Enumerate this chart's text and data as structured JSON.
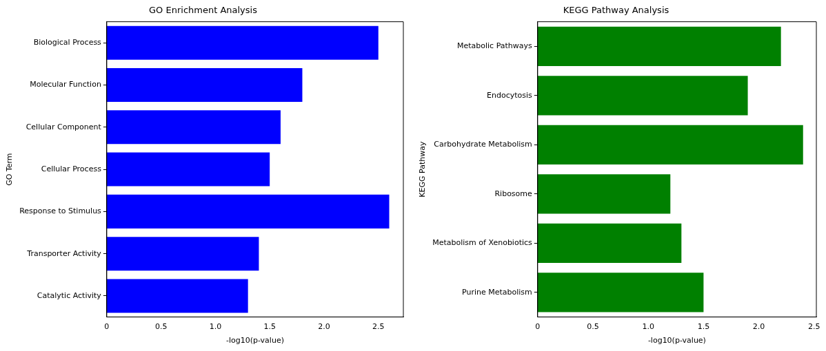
{
  "chart_data": [
    {
      "type": "bar",
      "orientation": "horizontal",
      "title": "GO Enrichment Analysis",
      "xlabel": "-log10(p-value)",
      "ylabel": "GO Term",
      "categories": [
        "Biological Process",
        "Molecular Function",
        "Cellular Component",
        "Cellular Process",
        "Response to Stimulus",
        "Transporter Activity",
        "Catalytic Activity"
      ],
      "values": [
        2.5,
        1.8,
        1.6,
        1.5,
        2.6,
        1.4,
        1.3
      ],
      "color": "#0000ff",
      "xlim": [
        0,
        2.73
      ],
      "xticks": [
        0,
        {
          "value": 0.5,
          "label": "0.5"
        },
        {
          "value": 1,
          "label": "1.0"
        },
        {
          "value": 1.5,
          "label": "1.5"
        },
        {
          "value": 2,
          "label": "2.0"
        },
        {
          "value": 2.5,
          "label": "2.5"
        }
      ],
      "grid": false,
      "legend": false
    },
    {
      "type": "bar",
      "orientation": "horizontal",
      "title": "KEGG Pathway Analysis",
      "xlabel": "-log10(p-value)",
      "ylabel": "KEGG Pathway",
      "categories": [
        "Metabolic Pathways",
        "Endocytosis",
        "Carbohydrate Metabolism",
        "Ribosome",
        "Metabolism of Xenobiotics",
        "Purine Metabolism"
      ],
      "values": [
        2.2,
        1.9,
        2.4,
        1.2,
        1.3,
        1.5
      ],
      "color": "#008000",
      "xlim": [
        0,
        2.52
      ],
      "xticks": [
        0,
        {
          "value": 0.5,
          "label": "0.5"
        },
        {
          "value": 1,
          "label": "1.0"
        },
        {
          "value": 1.5,
          "label": "1.5"
        },
        {
          "value": 2,
          "label": "2.0"
        },
        {
          "value": 2.5,
          "label": "2.5"
        }
      ],
      "grid": false,
      "legend": false
    }
  ]
}
